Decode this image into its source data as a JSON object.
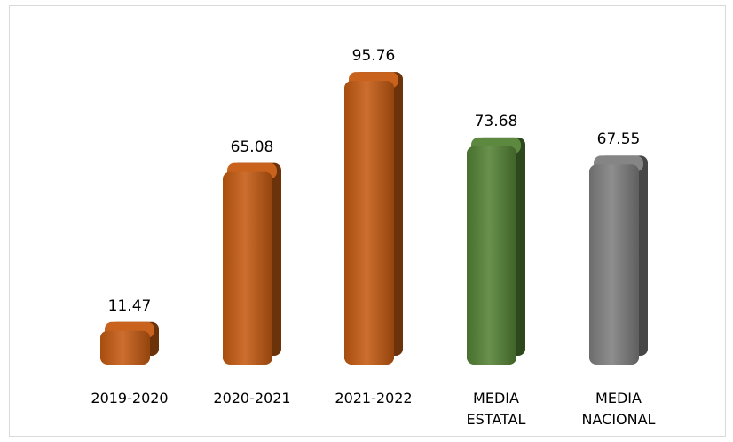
{
  "chart_data": {
    "type": "bar",
    "categories": [
      "2019-2020",
      "2020-2021",
      "2021-2022",
      "MEDIA ESTATAL",
      "MEDIA NACIONAL"
    ],
    "category_lines": [
      [
        "2019-2020"
      ],
      [
        "2020-2021"
      ],
      [
        "2021-2022"
      ],
      [
        "MEDIA",
        "ESTATAL"
      ],
      [
        "MEDIA",
        "NACIONAL"
      ]
    ],
    "values": [
      11.47,
      65.08,
      95.76,
      73.68,
      67.55
    ],
    "value_labels": [
      "11.47",
      "65.08",
      "95.76",
      "73.68",
      "67.55"
    ],
    "bar_colors": [
      "#c55a11",
      "#c55a11",
      "#c55a11",
      "#548235",
      "#7f7f7f"
    ],
    "ylim": [
      0,
      100
    ],
    "grid": false,
    "legend": "none"
  }
}
